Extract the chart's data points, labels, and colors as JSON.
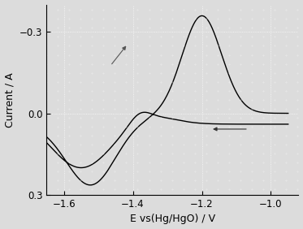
{
  "title": "",
  "xlabel": "E vs(Hg/HgO) / V",
  "ylabel": "Current / A",
  "xlim": [
    -1.65,
    -0.92
  ],
  "ylim": [
    0.3,
    -0.4
  ],
  "yticks": [
    0.3,
    0.0,
    -0.3
  ],
  "xticks": [
    -1.6,
    -1.4,
    -1.2,
    -1.0
  ],
  "background_color": "#dcdcdc",
  "line_color": "#000000"
}
